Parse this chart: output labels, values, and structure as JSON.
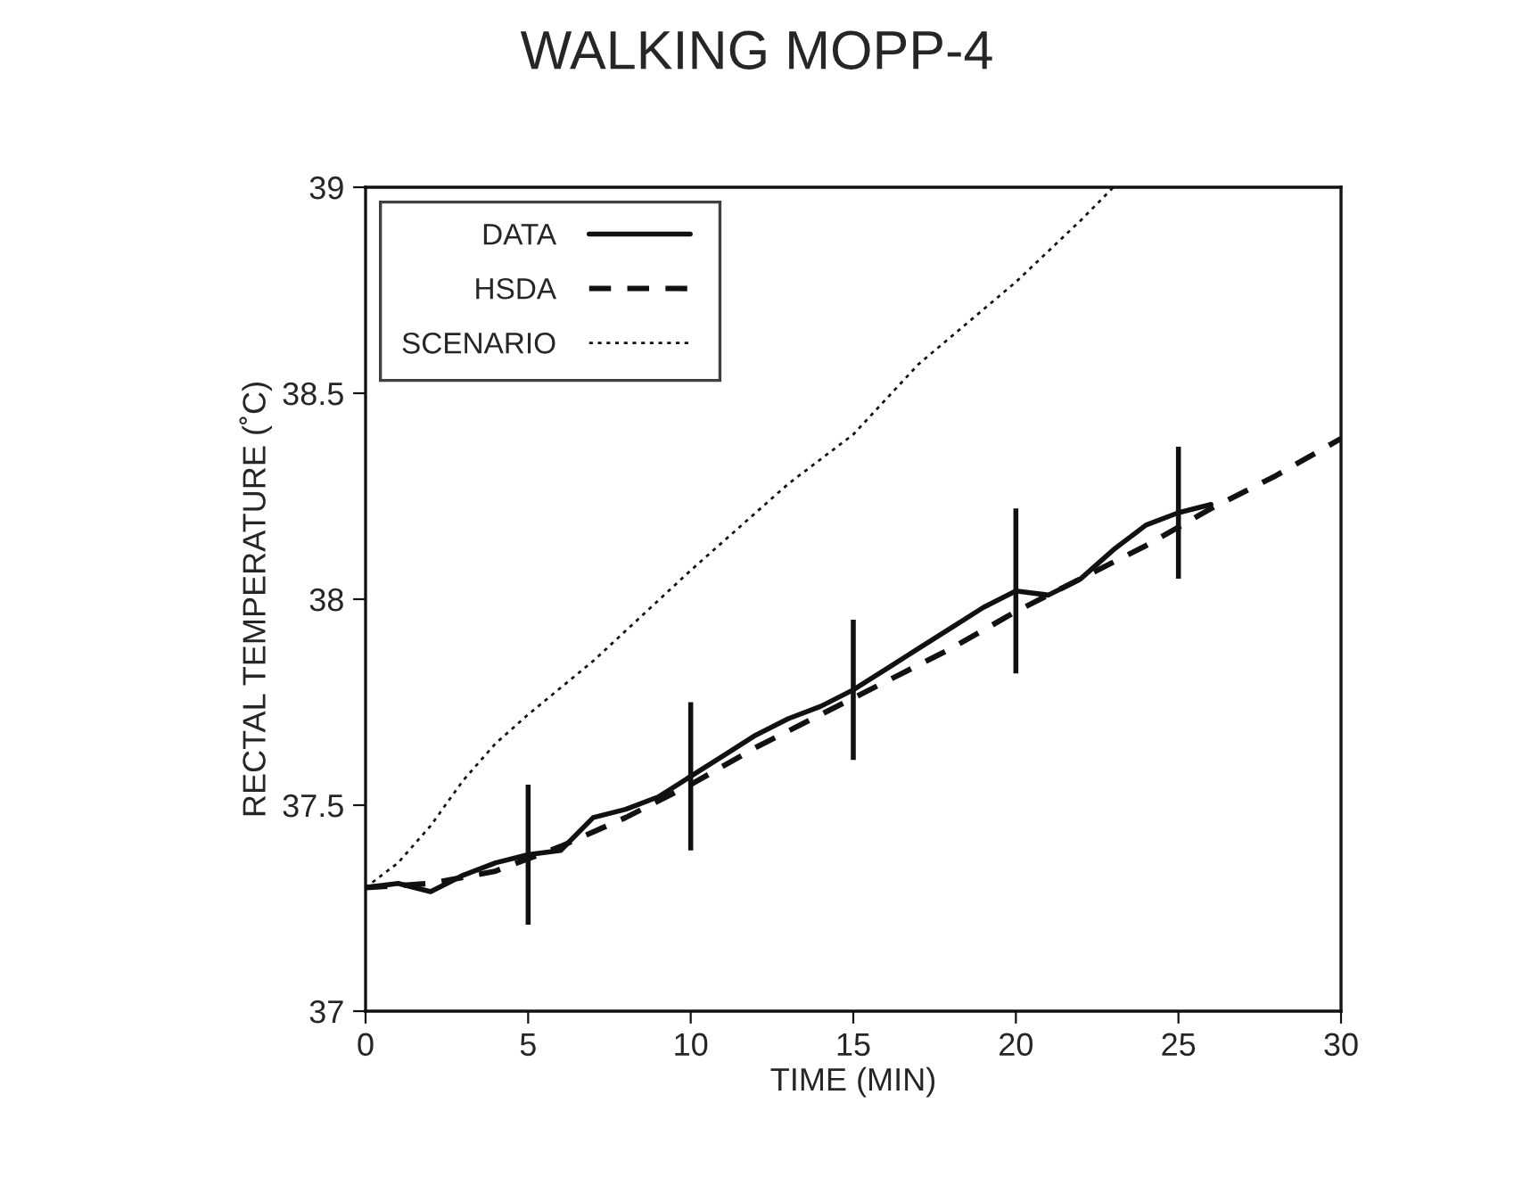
{
  "chart_data": {
    "type": "line",
    "title": "WALKING MOPP-4",
    "xlabel": "TIME (MIN)",
    "ylabel": "RECTAL TEMPERATURE (˚C)",
    "xlim": [
      0,
      30
    ],
    "ylim": [
      37,
      39
    ],
    "xticks": [
      0,
      5,
      10,
      15,
      20,
      25,
      30
    ],
    "yticks": [
      37,
      37.5,
      38,
      38.5,
      39
    ],
    "grid": false,
    "legend": "top left",
    "marker": "none",
    "series": [
      {
        "name": "DATA",
        "color": "#111111",
        "line_style": "solid",
        "x": [
          0,
          1,
          2,
          3,
          4,
          5,
          6,
          7,
          8,
          9,
          10,
          11,
          12,
          13,
          14,
          15,
          16,
          17,
          18,
          19,
          20,
          21,
          22,
          23,
          24,
          25,
          26
        ],
        "values": [
          37.3,
          37.31,
          37.29,
          37.33,
          37.36,
          37.38,
          37.39,
          37.47,
          37.49,
          37.52,
          37.57,
          37.62,
          37.67,
          37.71,
          37.74,
          37.78,
          37.83,
          37.88,
          37.93,
          37.98,
          38.02,
          38.01,
          38.05,
          38.12,
          38.18,
          38.21,
          38.23
        ],
        "errors": [
          null,
          null,
          null,
          null,
          null,
          0.17,
          null,
          null,
          null,
          null,
          0.18,
          null,
          null,
          null,
          null,
          0.17,
          null,
          null,
          null,
          null,
          0.2,
          null,
          null,
          null,
          null,
          0.16,
          null
        ]
      },
      {
        "name": "HSDA",
        "color": "#111111",
        "line_style": "dashed",
        "x": [
          0,
          2,
          4,
          6,
          8,
          10,
          12,
          14,
          16,
          18,
          20,
          22,
          24,
          26,
          28,
          30
        ],
        "values": [
          37.3,
          37.31,
          37.34,
          37.4,
          37.47,
          37.55,
          37.64,
          37.72,
          37.8,
          37.88,
          37.97,
          38.05,
          38.13,
          38.22,
          38.3,
          38.39
        ]
      },
      {
        "name": "SCENARIO",
        "color": "#111111",
        "line_style": "dotted",
        "x": [
          0,
          1,
          2,
          3,
          4,
          5,
          7,
          10,
          13,
          15,
          17,
          20,
          22,
          23
        ],
        "values": [
          37.3,
          37.36,
          37.45,
          37.56,
          37.65,
          37.72,
          37.85,
          38.07,
          38.28,
          38.4,
          38.57,
          38.77,
          38.92,
          39.0
        ]
      }
    ]
  }
}
